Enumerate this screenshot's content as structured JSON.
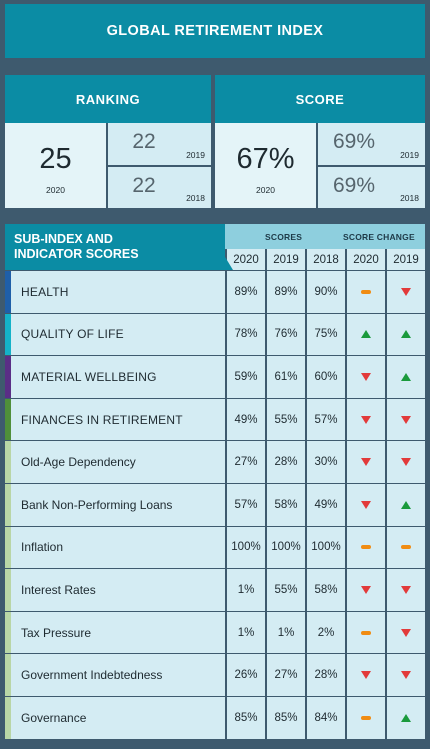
{
  "title": "GLOBAL RETIREMENT INDEX",
  "ranking": {
    "header": "RANKING",
    "main": {
      "value": "25",
      "year": "2020"
    },
    "history": [
      {
        "value": "22",
        "year": "2019"
      },
      {
        "value": "22",
        "year": "2018"
      }
    ]
  },
  "score": {
    "header": "SCORE",
    "main": {
      "value": "67%",
      "year": "2020"
    },
    "history": [
      {
        "value": "69%",
        "year": "2019"
      },
      {
        "value": "69%",
        "year": "2018"
      }
    ]
  },
  "table": {
    "header_line1": "SUB-INDEX AND",
    "header_line2": "INDICATOR SCORES",
    "scores_group": "SCORES",
    "change_group": "SCORE CHANGE",
    "years": [
      "2020",
      "2019",
      "2018",
      "2020",
      "2019"
    ],
    "rows": [
      {
        "label": "HEALTH",
        "accent": "#1f5fa8",
        "scores": [
          "89%",
          "89%",
          "90%"
        ],
        "change": [
          "neutral",
          "down"
        ],
        "main": true
      },
      {
        "label": "QUALITY OF LIFE",
        "accent": "#14b2c8",
        "scores": [
          "78%",
          "76%",
          "75%"
        ],
        "change": [
          "up",
          "up"
        ],
        "main": true
      },
      {
        "label": "MATERIAL WELLBEING",
        "accent": "#5a2e86",
        "scores": [
          "59%",
          "61%",
          "60%"
        ],
        "change": [
          "down",
          "up"
        ],
        "main": true
      },
      {
        "label": "FINANCES IN RETIREMENT",
        "accent": "#4f8f3a",
        "scores": [
          "49%",
          "55%",
          "57%"
        ],
        "change": [
          "down",
          "down"
        ],
        "main": true
      },
      {
        "label": "Old-Age Dependency",
        "accent": "#b9d6a6",
        "scores": [
          "27%",
          "28%",
          "30%"
        ],
        "change": [
          "down",
          "down"
        ]
      },
      {
        "label": "Bank Non-Performing Loans",
        "accent": "#b9d6a6",
        "scores": [
          "57%",
          "58%",
          "49%"
        ],
        "change": [
          "down",
          "up"
        ]
      },
      {
        "label": "Inflation",
        "accent": "#b9d6a6",
        "scores": [
          "100%",
          "100%",
          "100%"
        ],
        "change": [
          "neutral",
          "neutral"
        ]
      },
      {
        "label": "Interest Rates",
        "accent": "#b9d6a6",
        "scores": [
          "1%",
          "55%",
          "58%"
        ],
        "change": [
          "down",
          "down"
        ]
      },
      {
        "label": "Tax Pressure",
        "accent": "#b9d6a6",
        "scores": [
          "1%",
          "1%",
          "2%"
        ],
        "change": [
          "neutral",
          "down"
        ]
      },
      {
        "label": "Government Indebtedness",
        "accent": "#b9d6a6",
        "scores": [
          "26%",
          "27%",
          "28%"
        ],
        "change": [
          "down",
          "down"
        ]
      },
      {
        "label": "Governance",
        "accent": "#b9d6a6",
        "scores": [
          "85%",
          "85%",
          "84%"
        ],
        "change": [
          "neutral",
          "up"
        ]
      }
    ]
  }
}
